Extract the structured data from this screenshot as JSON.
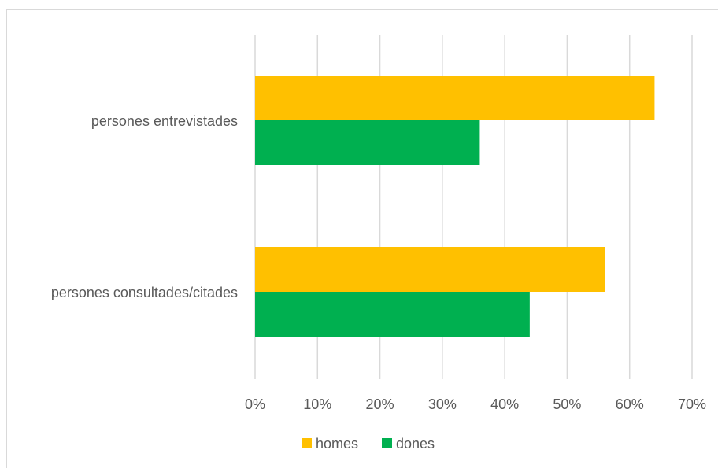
{
  "chart_data": {
    "type": "bar",
    "orientation": "horizontal",
    "categories": [
      "persones entrevistades",
      "persones consultades/citades"
    ],
    "series": [
      {
        "name": "homes",
        "values": [
          64,
          56
        ],
        "color": "#ffc000"
      },
      {
        "name": "dones",
        "values": [
          36,
          44
        ],
        "color": "#00b050"
      }
    ],
    "x_ticks": [
      "0%",
      "10%",
      "20%",
      "30%",
      "40%",
      "50%",
      "60%",
      "70%"
    ],
    "xlim": [
      0,
      70
    ],
    "x_unit": "%",
    "grid": "vertical",
    "legend_position": "bottom"
  }
}
